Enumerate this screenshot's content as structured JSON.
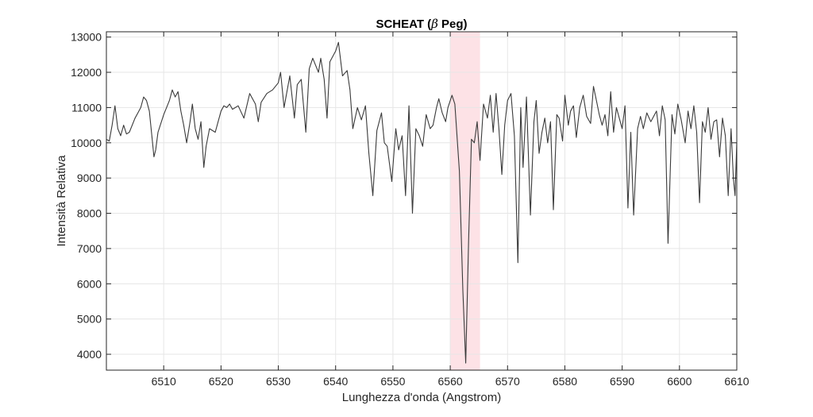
{
  "chart_data": {
    "type": "line",
    "title": "SCHEAT (β Peg)",
    "title_parts": {
      "prefix": "SCHEAT (",
      "symbol": "β",
      "suffix": " Peg)"
    },
    "xlabel": "Lunghezza d'onda (Angstrom)",
    "ylabel": "Intensità Relativa",
    "xlim": [
      6500,
      6610
    ],
    "ylim": [
      3550,
      13150
    ],
    "xticks": [
      6510,
      6520,
      6530,
      6540,
      6550,
      6560,
      6570,
      6580,
      6590,
      6600,
      6610
    ],
    "yticks": [
      4000,
      5000,
      6000,
      7000,
      8000,
      9000,
      10000,
      11000,
      12000,
      13000
    ],
    "grid": true,
    "highlight": {
      "from": 6560,
      "to": 6565.2,
      "color": "#fde2e6"
    },
    "line_color": "#3a3a3a",
    "series": [
      {
        "x": [
          6500,
          6500.5,
          6501,
          6501.5,
          6502,
          6502.5,
          6503,
          6503.5,
          6504,
          6505,
          6505.5,
          6506,
          6506.5,
          6507,
          6507.5,
          6508,
          6508.3,
          6508.6,
          6509,
          6510,
          6511,
          6511.5,
          6512,
          6512.5,
          6513,
          6513.5,
          6514,
          6514.6,
          6515,
          6515.5,
          6516,
          6516.5,
          6517,
          6517.4,
          6518,
          6519,
          6520,
          6520.5,
          6521,
          6521.5,
          6522,
          6523,
          6524,
          6525,
          6526,
          6526.5,
          6527,
          6528,
          6529,
          6530,
          6530.4,
          6531,
          6532,
          6532.8,
          6533.3,
          6534,
          6534.8,
          6535.4,
          6536,
          6537,
          6537.4,
          6538,
          6538.5,
          6539,
          6540,
          6540.5,
          6541.2,
          6542,
          6542.5,
          6543,
          6543.8,
          6544.5,
          6545.2,
          6545.8,
          6546.5,
          6547.2,
          6548,
          6548.5,
          6549,
          6549.8,
          6550.5,
          6551,
          6551.6,
          6552.2,
          6552.8,
          6553.4,
          6554,
          6554.6,
          6555.2,
          6555.8,
          6556.5,
          6557,
          6557.6,
          6558,
          6558.6,
          6559.2,
          6559.6,
          6560.3,
          6560.8,
          6561.6,
          6562.2,
          6562.7,
          6563.2,
          6563.7,
          6564.2,
          6564.7,
          6565.2,
          6565.8,
          6566.5,
          6567,
          6567.5,
          6568,
          6568.5,
          6569,
          6569.5,
          6570,
          6570.6,
          6571.2,
          6571.8,
          6572.3,
          6572.7,
          6573.3,
          6574,
          6574.6,
          6575,
          6575.5,
          6576,
          6576.5,
          6577,
          6577.5,
          6578,
          6578.6,
          6579,
          6579.6,
          6580,
          6580.6,
          6581,
          6581.5,
          6582,
          6582.6,
          6583.2,
          6583.8,
          6584.5,
          6585,
          6585.5,
          6586,
          6586.5,
          6587,
          6587.5,
          6588,
          6588.5,
          6589,
          6589.5,
          6590,
          6590.5,
          6591,
          6591.5,
          6592,
          6592.7,
          6593.2,
          6593.7,
          6594.3,
          6595,
          6595.5,
          6596,
          6596.5,
          6597,
          6597.5,
          6598,
          6598.7,
          6599.2,
          6599.7,
          6600.3,
          6601,
          6601.5,
          6602,
          6602.5,
          6603,
          6603.5,
          6604,
          6604.5,
          6605,
          6605.5,
          6606,
          6606.5,
          6607,
          6607.5,
          6608,
          6608.5,
          6609,
          6609.4,
          6609.7,
          6610
        ],
        "y": [
          10100,
          10050,
          10500,
          11050,
          10400,
          10200,
          10500,
          10250,
          10300,
          10700,
          10850,
          11000,
          11300,
          11200,
          10900,
          10100,
          9600,
          9800,
          10300,
          10800,
          11200,
          11500,
          11300,
          11450,
          10900,
          10500,
          10000,
          10600,
          11100,
          10400,
          10100,
          10600,
          9300,
          9900,
          10400,
          10300,
          10900,
          11050,
          11000,
          11100,
          10950,
          11050,
          10700,
          11400,
          11100,
          10600,
          11150,
          11400,
          11500,
          11700,
          12000,
          11000,
          11900,
          10700,
          11650,
          11800,
          10300,
          12100,
          12400,
          12000,
          12400,
          11800,
          10700,
          12300,
          12600,
          12850,
          11900,
          12050,
          11500,
          10400,
          11000,
          10650,
          11050,
          9700,
          8500,
          10350,
          10850,
          10000,
          9900,
          8900,
          10400,
          9800,
          10200,
          8500,
          11050,
          8000,
          10400,
          10200,
          9900,
          10800,
          10400,
          10500,
          11000,
          11250,
          10850,
          10600,
          11000,
          11350,
          11100,
          9200,
          5800,
          3750,
          7200,
          10100,
          10000,
          10600,
          9500,
          11100,
          10700,
          11350,
          10300,
          11400,
          10400,
          9100,
          10500,
          11200,
          11400,
          10200,
          6600,
          11000,
          9300,
          11300,
          7950,
          10600,
          11200,
          9700,
          10300,
          10700,
          10000,
          10600,
          8100,
          10800,
          10700,
          10050,
          11350,
          10500,
          10900,
          11050,
          10150,
          11000,
          11350,
          10750,
          10550,
          11600,
          11200,
          10800,
          10500,
          10800,
          10200,
          11450,
          10300,
          11000,
          10700,
          10400,
          11050,
          8150,
          10300,
          7950,
          10400,
          10750,
          10400,
          10850,
          10600,
          10750,
          10900,
          10200,
          11050,
          10650,
          7150,
          10800,
          10250,
          11100,
          10650,
          10000,
          10900,
          10400,
          11050,
          10300,
          8300,
          10600,
          10300,
          11000,
          10100,
          10600,
          10650,
          9600,
          10700,
          10200,
          8500,
          10400,
          9000,
          8500,
          10000
        ]
      }
    ]
  }
}
